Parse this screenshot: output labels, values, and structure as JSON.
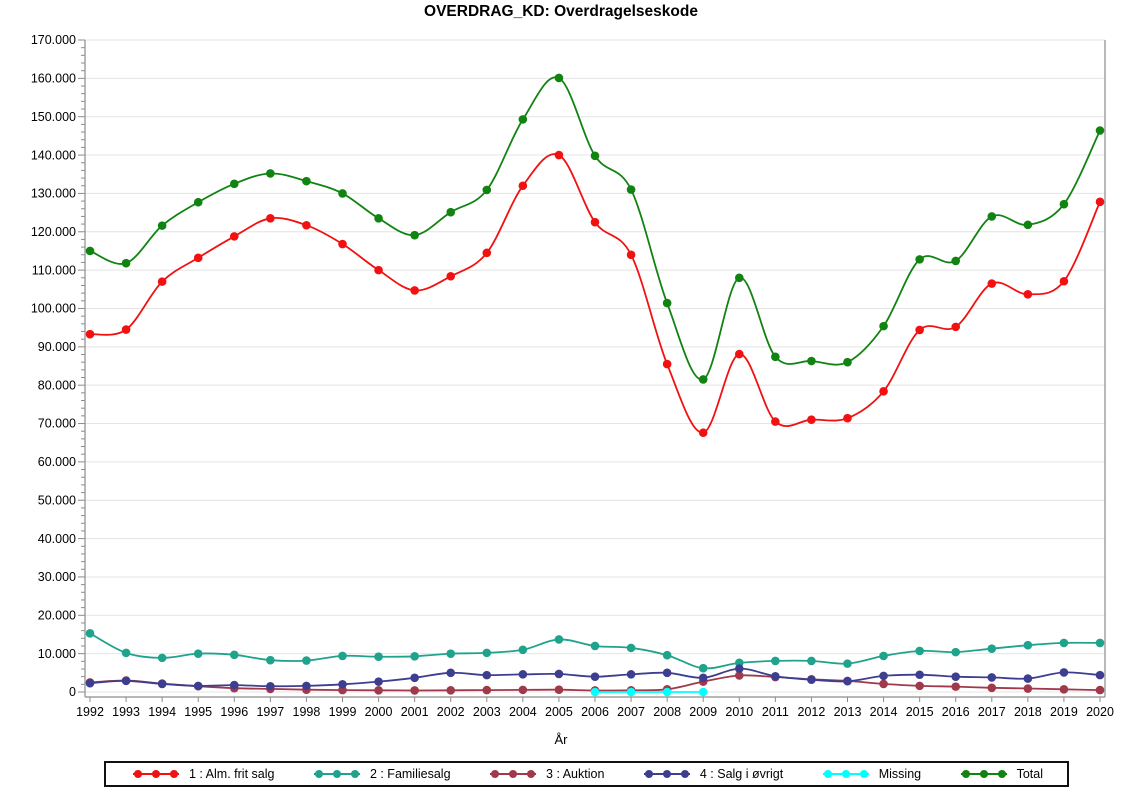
{
  "page": {
    "title": "OVERDRAG_KD: Overdragelseskode"
  },
  "chart_data": {
    "type": "line",
    "title": "OVERDRAG_KD: Overdragelseskode",
    "xlabel": "År",
    "ylabel": "",
    "ylim": [
      0,
      170000
    ],
    "y_tick_step": 10000,
    "y_minor_tick_step": 2000,
    "y_tick_labels": [
      "0",
      "10.000",
      "20.000",
      "30.000",
      "40.000",
      "50.000",
      "60.000",
      "70.000",
      "80.000",
      "90.000",
      "100.000",
      "110.000",
      "120.000",
      "130.000",
      "140.000",
      "150.000",
      "160.000",
      "170.000"
    ],
    "grid": "horizontal",
    "legend_position": "bottom",
    "x": [
      1992,
      1993,
      1994,
      1995,
      1996,
      1997,
      1998,
      1999,
      2000,
      2001,
      2002,
      2003,
      2004,
      2005,
      2006,
      2007,
      2008,
      2009,
      2010,
      2011,
      2012,
      2013,
      2014,
      2015,
      2016,
      2017,
      2018,
      2019,
      2020
    ],
    "series": [
      {
        "name": "1 : Alm. frit salg",
        "color": "#f21111",
        "values": [
          93300,
          94500,
          107000,
          113200,
          118800,
          123500,
          121700,
          116800,
          110000,
          104700,
          108400,
          114500,
          132000,
          140000,
          122500,
          114000,
          85500,
          67600,
          88100,
          70500,
          71000,
          71400,
          78400,
          94400,
          95200,
          106500,
          103700,
          107100,
          127800
        ]
      },
      {
        "name": "2 : Familiesalg",
        "color": "#1fa38c",
        "values": [
          15300,
          10200,
          8900,
          10000,
          9700,
          8300,
          8200,
          9400,
          9200,
          9300,
          10000,
          10200,
          11000,
          13700,
          12000,
          11500,
          9600,
          6200,
          7600,
          8100,
          8100,
          7400,
          9400,
          10700,
          10400,
          11300,
          12200,
          12800,
          12800
        ]
      },
      {
        "name": "3 : Auktion",
        "color": "#a0394a",
        "values": [
          2500,
          3000,
          2200,
          1500,
          1000,
          800,
          600,
          500,
          450,
          400,
          450,
          500,
          550,
          600,
          400,
          450,
          700,
          2700,
          4300,
          3900,
          3300,
          2900,
          2100,
          1600,
          1400,
          1100,
          900,
          700,
          500
        ]
      },
      {
        "name": "4 : Salg i øvrigt",
        "color": "#3e3e90",
        "values": [
          2300,
          2900,
          2100,
          1600,
          1800,
          1500,
          1600,
          2000,
          2700,
          3700,
          5000,
          4400,
          4600,
          4700,
          4000,
          4600,
          5000,
          3700,
          6100,
          4100,
          3200,
          2800,
          4200,
          4500,
          4000,
          3800,
          3500,
          5100,
          4400
        ]
      },
      {
        "name": "Missing",
        "color": "#00ffff",
        "values": [
          null,
          null,
          null,
          null,
          null,
          null,
          null,
          null,
          null,
          null,
          null,
          null,
          null,
          null,
          0,
          0,
          0,
          0,
          null,
          null,
          null,
          null,
          null,
          null,
          null,
          null,
          null,
          null,
          null
        ]
      },
      {
        "name": "Total",
        "color": "#118311",
        "values": [
          115000,
          111800,
          121600,
          127700,
          132500,
          135200,
          133200,
          130000,
          123500,
          119100,
          125100,
          130900,
          149300,
          160100,
          139800,
          131000,
          101400,
          81500,
          108000,
          87400,
          86300,
          86000,
          95400,
          112800,
          112400,
          124000,
          121800,
          127200,
          146400
        ]
      }
    ]
  }
}
